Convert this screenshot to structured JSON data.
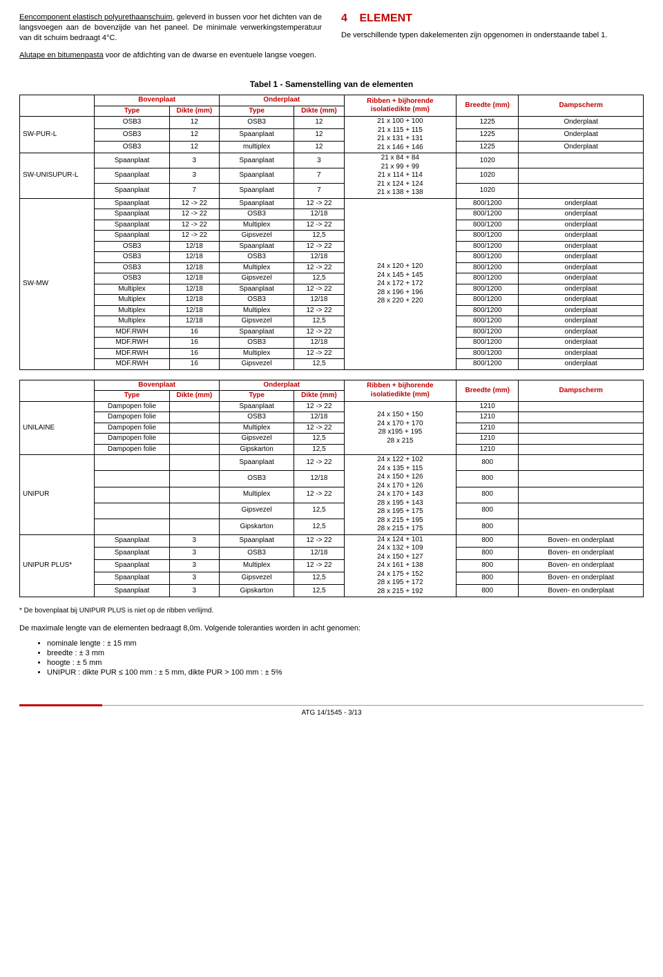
{
  "intro": {
    "p1a": "Eencomponent elastisch polyurethaanschuim",
    "p1b": ", geleverd in bussen voor het dichten van de langsvoegen aan de bovenzijde van het paneel. De minimale verwerkingstemperatuur van dit schuim bedraagt 4°C.",
    "p2a": "Alutape en bitumenpasta",
    "p2b": " voor de afdichting van de dwarse en eventuele langse voegen.",
    "heading": "ELEMENT",
    "headingNum": "4",
    "p3": "De verschillende typen dakelementen zijn opgenomen in onderstaande tabel 1."
  },
  "table1": {
    "caption": "Tabel 1  - Samenstelling van de elementen",
    "headers": {
      "boven": "Bovenplaat",
      "onder": "Onderplaat",
      "type": "Type",
      "dikte": "Dikte (mm)",
      "ribben": "Ribben + bijhorende isolatiedikte (mm)",
      "breedte": "Breedte (mm)",
      "damp": "Dampscherm"
    },
    "groups": [
      {
        "label": "SW-PUR-L",
        "rows": [
          {
            "bt": "OSB3",
            "bd": "12",
            "ot": "OSB3",
            "od": "12",
            "br": "1225",
            "ds": "Onderplaat"
          },
          {
            "bt": "OSB3",
            "bd": "12",
            "ot": "Spaanplaat",
            "od": "12",
            "br": "1225",
            "ds": "Onderplaat"
          },
          {
            "bt": "OSB3",
            "bd": "12",
            "ot": "multiplex",
            "od": "12",
            "br": "1225",
            "ds": "Onderplaat"
          }
        ],
        "rib": "21 x 100 + 100\n21 x 115 + 115\n21 x 131 + 131\n21 x 146 + 146"
      },
      {
        "label": "SW-UNISUPUR-L",
        "rows": [
          {
            "bt": "Spaanplaat",
            "bd": "3",
            "ot": "Spaanplaat",
            "od": "3",
            "br": "1020",
            "ds": ""
          },
          {
            "bt": "Spaanplaat",
            "bd": "3",
            "ot": "Spaanplaat",
            "od": "7",
            "br": "1020",
            "ds": ""
          },
          {
            "bt": "Spaanplaat",
            "bd": "7",
            "ot": "Spaanplaat",
            "od": "7",
            "br": "1020",
            "ds": ""
          }
        ],
        "rib": "21 x 84 + 84\n21 x 99 + 99\n21 x 114 + 114\n21 x 124 + 124\n21 x 138 + 138"
      },
      {
        "label": "SW-MW",
        "rows": [
          {
            "bt": "Spaanplaat",
            "bd": "12 -> 22",
            "ot": "Spaanplaat",
            "od": "12 -> 22",
            "br": "800/1200",
            "ds": "onderplaat"
          },
          {
            "bt": "Spaanplaat",
            "bd": "12 -> 22",
            "ot": "OSB3",
            "od": "12/18",
            "br": "800/1200",
            "ds": "onderplaat"
          },
          {
            "bt": "Spaanplaat",
            "bd": "12 -> 22",
            "ot": "Multiplex",
            "od": "12 -> 22",
            "br": "800/1200",
            "ds": "onderplaat"
          },
          {
            "bt": "Spaanplaat",
            "bd": "12 -> 22",
            "ot": "Gipsvezel",
            "od": "12,5",
            "br": "800/1200",
            "ds": "onderplaat"
          },
          {
            "bt": "OSB3",
            "bd": "12/18",
            "ot": "Spaanplaat",
            "od": "12 -> 22",
            "br": "800/1200",
            "ds": "onderplaat"
          },
          {
            "bt": "OSB3",
            "bd": "12/18",
            "ot": "OSB3",
            "od": "12/18",
            "br": "800/1200",
            "ds": "onderplaat"
          },
          {
            "bt": "OSB3",
            "bd": "12/18",
            "ot": "Multiplex",
            "od": "12 -> 22",
            "br": "800/1200",
            "ds": "onderplaat"
          },
          {
            "bt": "OSB3",
            "bd": "12/18",
            "ot": "Gipsvezel",
            "od": "12,5",
            "br": "800/1200",
            "ds": "onderplaat"
          },
          {
            "bt": "Multiplex",
            "bd": "12/18",
            "ot": "Spaanplaat",
            "od": "12 -> 22",
            "br": "800/1200",
            "ds": "onderplaat"
          },
          {
            "bt": "Multiplex",
            "bd": "12/18",
            "ot": "OSB3",
            "od": "12/18",
            "br": "800/1200",
            "ds": "onderplaat"
          },
          {
            "bt": "Multiplex",
            "bd": "12/18",
            "ot": "Multiplex",
            "od": "12 -> 22",
            "br": "800/1200",
            "ds": "onderplaat"
          },
          {
            "bt": "Multiplex",
            "bd": "12/18",
            "ot": "Gipsvezel",
            "od": "12,5",
            "br": "800/1200",
            "ds": "onderplaat"
          },
          {
            "bt": "MDF.RWH",
            "bd": "16",
            "ot": "Spaanplaat",
            "od": "12 -> 22",
            "br": "800/1200",
            "ds": "onderplaat"
          },
          {
            "bt": "MDF.RWH",
            "bd": "16",
            "ot": "OSB3",
            "od": "12/18",
            "br": "800/1200",
            "ds": "onderplaat"
          },
          {
            "bt": "MDF.RWH",
            "bd": "16",
            "ot": "Multiplex",
            "od": "12 -> 22",
            "br": "800/1200",
            "ds": "onderplaat"
          },
          {
            "bt": "MDF.RWH",
            "bd": "16",
            "ot": "Gipsvezel",
            "od": "12,5",
            "br": "800/1200",
            "ds": "onderplaat"
          }
        ],
        "rib": "24 x 120 + 120\n24 x 145 + 145\n24 x 172 + 172\n28 x 196 + 196\n28 x 220 + 220"
      }
    ]
  },
  "table2": {
    "headers": {
      "boven": "Bovenplaat",
      "onder": "Onderplaat",
      "type": "Type",
      "dikte": "Dikte (mm)",
      "ribben": "Ribben + bijhorende isolatiedikte (mm)",
      "breedte": "Breedte (mm)",
      "damp": "Dampscherm"
    },
    "groups": [
      {
        "label": "UNILAINE",
        "rows": [
          {
            "bt": "Dampopen folie",
            "bd": "",
            "ot": "Spaanplaat",
            "od": "12 -> 22",
            "br": "1210",
            "ds": ""
          },
          {
            "bt": "Dampopen folie",
            "bd": "",
            "ot": "OSB3",
            "od": "12/18",
            "br": "1210",
            "ds": ""
          },
          {
            "bt": "Dampopen folie",
            "bd": "",
            "ot": "Multiplex",
            "od": "12 -> 22",
            "br": "1210",
            "ds": ""
          },
          {
            "bt": "Dampopen folie",
            "bd": "",
            "ot": "Gipsvezel",
            "od": "12,5",
            "br": "1210",
            "ds": ""
          },
          {
            "bt": "Dampopen folie",
            "bd": "",
            "ot": "Gipskarton",
            "od": "12,5",
            "br": "1210",
            "ds": ""
          }
        ],
        "rib": "24 x 150 + 150\n24 x 170 + 170\n28 x195 + 195\n28 x 215"
      },
      {
        "label": "UNIPUR",
        "rows": [
          {
            "bt": "",
            "bd": "",
            "ot": "Spaanplaat",
            "od": "12 -> 22",
            "br": "800",
            "ds": ""
          },
          {
            "bt": "",
            "bd": "",
            "ot": "OSB3",
            "od": "12/18",
            "br": "800",
            "ds": ""
          },
          {
            "bt": "",
            "bd": "",
            "ot": "Multiplex",
            "od": "12 -> 22",
            "br": "800",
            "ds": ""
          },
          {
            "bt": "",
            "bd": "",
            "ot": "Gipsvezel",
            "od": "12,5",
            "br": "800",
            "ds": ""
          },
          {
            "bt": "",
            "bd": "",
            "ot": "Gipskarton",
            "od": "12,5",
            "br": "800",
            "ds": ""
          }
        ],
        "rib": "24 x 122 + 102\n24 x 135 + 115\n24 x 150 + 126\n24 x 170 + 126\n24 x 170 + 143\n28 x 195 + 143\n28 x 195 + 175\n28 x 215 + 195\n28 x 215 + 175"
      },
      {
        "label": "UNIPUR PLUS*",
        "rows": [
          {
            "bt": "Spaanplaat",
            "bd": "3",
            "ot": "Spaanplaat",
            "od": "12 -> 22",
            "br": "800",
            "ds": "Boven- en onderplaat"
          },
          {
            "bt": "Spaanplaat",
            "bd": "3",
            "ot": "OSB3",
            "od": "12/18",
            "br": "800",
            "ds": "Boven- en onderplaat"
          },
          {
            "bt": "Spaanplaat",
            "bd": "3",
            "ot": "Multiplex",
            "od": "12 -> 22",
            "br": "800",
            "ds": "Boven- en onderplaat"
          },
          {
            "bt": "Spaanplaat",
            "bd": "3",
            "ot": "Gipsvezel",
            "od": "12,5",
            "br": "800",
            "ds": "Boven- en onderplaat"
          },
          {
            "bt": "Spaanplaat",
            "bd": "3",
            "ot": "Gipskarton",
            "od": "12,5",
            "br": "800",
            "ds": "Boven- en onderplaat"
          }
        ],
        "rib": "24 x 124 + 101\n24 x 132 + 109\n24 x 150 + 127\n24 x 161 + 138\n24 x 175 + 152\n28 x 195 + 172\n28 x 215 + 192"
      }
    ]
  },
  "footnote": "* De bovenplaat bij UNIPUR PLUS is niet op de ribben verlijmd.",
  "aftertext": "De maximale lengte van de elementen bedraagt 8,0m. Volgende toleranties worden in acht genomen:",
  "bullets": [
    "nominale lengte : ± 15 mm",
    "breedte : ± 3 mm",
    "hoogte : ± 5 mm",
    "UNIPUR : dikte PUR ≤ 100 mm : ± 5 mm, dikte PUR > 100 mm : ± 5%"
  ],
  "footer": "ATG 14/1545 - 3/13"
}
